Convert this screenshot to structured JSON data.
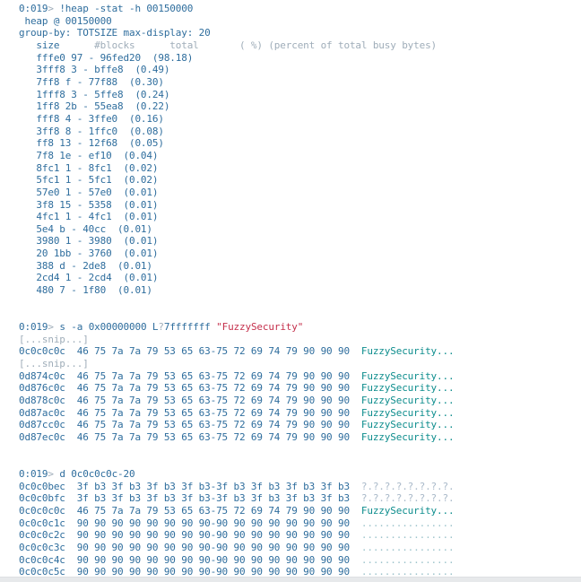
{
  "colors": {
    "bg": "#ffffff",
    "cmd": "#2e6d9d",
    "dim": "#9fadb9",
    "str": "#c5304c",
    "ascii": "#0d8d8d",
    "q": "#a9b9c9",
    "dots": "#9cc3cb",
    "bottom_bar": "#e7e9eb",
    "bottom_bar_edge": "#dde0e3"
  },
  "console": {
    "prompt": "0:019>",
    "sections": [
      {
        "name": "heap-stat-output",
        "command": "!heap -stat -h 00150000",
        "lines": [
          [
            [
              "cmd",
              "0:019"
            ],
            [
              "dim",
              ">"
            ],
            [
              "cmd",
              " !heap -stat -h 00150000"
            ]
          ],
          [
            [
              "cmd",
              " heap @ 00150000"
            ]
          ],
          [
            [
              "cmd",
              "group-by: TOTSIZE max-display: 20"
            ]
          ],
          [
            [
              "cmd",
              "   size"
            ],
            [
              "dim",
              "      #blocks      total       ( %) (percent of total busy bytes)"
            ]
          ],
          [
            [
              "cmd",
              "   fffe0 97 - 96fed20  (98.18)"
            ]
          ],
          [
            [
              "cmd",
              "   3fff8 3 - bffe8  (0.49)"
            ]
          ],
          [
            [
              "cmd",
              "   7ff8 f - 77f88  (0.30)"
            ]
          ],
          [
            [
              "cmd",
              "   1fff8 3 - 5ffe8  (0.24)"
            ]
          ],
          [
            [
              "cmd",
              "   1ff8 2b - 55ea8  (0.22)"
            ]
          ],
          [
            [
              "cmd",
              "   fff8 4 - 3ffe0  (0.16)"
            ]
          ],
          [
            [
              "cmd",
              "   3ff8 8 - 1ffc0  (0.08)"
            ]
          ],
          [
            [
              "cmd",
              "   ff8 13 - 12f68  (0.05)"
            ]
          ],
          [
            [
              "cmd",
              "   7f8 1e - ef10  (0.04)"
            ]
          ],
          [
            [
              "cmd",
              "   8fc1 1 - 8fc1  (0.02)"
            ]
          ],
          [
            [
              "cmd",
              "   5fc1 1 - 5fc1  (0.02)"
            ]
          ],
          [
            [
              "cmd",
              "   57e0 1 - 57e0  (0.01)"
            ]
          ],
          [
            [
              "cmd",
              "   3f8 15 - 5358  (0.01)"
            ]
          ],
          [
            [
              "cmd",
              "   4fc1 1 - 4fc1  (0.01)"
            ]
          ],
          [
            [
              "cmd",
              "   5e4 b - 40cc  (0.01)"
            ]
          ],
          [
            [
              "cmd",
              "   3980 1 - 3980  (0.01)"
            ]
          ],
          [
            [
              "cmd",
              "   20 1bb - 3760  (0.01)"
            ]
          ],
          [
            [
              "cmd",
              "   388 d - 2de8  (0.01)"
            ]
          ],
          [
            [
              "cmd",
              "   2cd4 1 - 2cd4  (0.01)"
            ]
          ],
          [
            [
              "cmd",
              "   480 7 - 1f80  (0.01)"
            ]
          ],
          [],
          []
        ]
      },
      {
        "name": "search-output",
        "command": "s -a 0x00000000 L?7fffffff \"FuzzySecurity\"",
        "lines": [
          [
            [
              "cmd",
              "0:019"
            ],
            [
              "dim",
              ">"
            ],
            [
              "cmd",
              " s -a 0x00000000 L"
            ],
            [
              "dim",
              "?"
            ],
            [
              "cmd",
              "7fffffff "
            ],
            [
              "str",
              "\"FuzzySecurity\""
            ]
          ],
          [
            [
              "dim",
              "[...snip...]"
            ]
          ],
          [
            [
              "cmd",
              "0c0c0c0c  46 75 7a 7a 79 53 65 63-75 72 69 74 79 90 90 90"
            ],
            [
              "ascii",
              "  FuzzySecurity..."
            ]
          ],
          [
            [
              "dim",
              "[...snip...]"
            ]
          ],
          [
            [
              "cmd",
              "0d874c0c  46 75 7a 7a 79 53 65 63-75 72 69 74 79 90 90 90"
            ],
            [
              "ascii",
              "  FuzzySecurity..."
            ]
          ],
          [
            [
              "cmd",
              "0d876c0c  46 75 7a 7a 79 53 65 63-75 72 69 74 79 90 90 90"
            ],
            [
              "ascii",
              "  FuzzySecurity..."
            ]
          ],
          [
            [
              "cmd",
              "0d878c0c  46 75 7a 7a 79 53 65 63-75 72 69 74 79 90 90 90"
            ],
            [
              "ascii",
              "  FuzzySecurity..."
            ]
          ],
          [
            [
              "cmd",
              "0d87ac0c  46 75 7a 7a 79 53 65 63-75 72 69 74 79 90 90 90"
            ],
            [
              "ascii",
              "  FuzzySecurity..."
            ]
          ],
          [
            [
              "cmd",
              "0d87cc0c  46 75 7a 7a 79 53 65 63-75 72 69 74 79 90 90 90"
            ],
            [
              "ascii",
              "  FuzzySecurity..."
            ]
          ],
          [
            [
              "cmd",
              "0d87ec0c  46 75 7a 7a 79 53 65 63-75 72 69 74 79 90 90 90"
            ],
            [
              "ascii",
              "  FuzzySecurity..."
            ]
          ],
          [],
          []
        ]
      },
      {
        "name": "memory-dump-output",
        "command": "d 0c0c0c0c-20",
        "lines": [
          [
            [
              "cmd",
              "0:019"
            ],
            [
              "dim",
              ">"
            ],
            [
              "cmd",
              " d 0c0c0c0c-20"
            ]
          ],
          [
            [
              "cmd",
              "0c0c0bec  3f b3 3f b3 3f b3 3f b3-3f b3 3f b3 3f b3 3f b3"
            ],
            [
              "q",
              "  ?.?.?.?.?.?.?.?."
            ]
          ],
          [
            [
              "cmd",
              "0c0c0bfc  3f b3 3f b3 3f b3 3f b3-3f b3 3f b3 3f b3 3f b3"
            ],
            [
              "q",
              "  ?.?.?.?.?.?.?.?."
            ]
          ],
          [
            [
              "cmd",
              "0c0c0c0c  46 75 7a 7a 79 53 65 63-75 72 69 74 79 90 90 90"
            ],
            [
              "ascii",
              "  FuzzySecurity..."
            ]
          ],
          [
            [
              "cmd",
              "0c0c0c1c  90 90 90 90 90 90 90 90-90 90 90 90 90 90 90 90"
            ],
            [
              "dots",
              "  ................"
            ]
          ],
          [
            [
              "cmd",
              "0c0c0c2c  90 90 90 90 90 90 90 90-90 90 90 90 90 90 90 90"
            ],
            [
              "dots",
              "  ................"
            ]
          ],
          [
            [
              "cmd",
              "0c0c0c3c  90 90 90 90 90 90 90 90-90 90 90 90 90 90 90 90"
            ],
            [
              "dots",
              "  ................"
            ]
          ],
          [
            [
              "cmd",
              "0c0c0c4c  90 90 90 90 90 90 90 90-90 90 90 90 90 90 90 90"
            ],
            [
              "dots",
              "  ................"
            ]
          ],
          [
            [
              "cmd",
              "0c0c0c5c  90 90 90 90 90 90 90 90-90 90 90 90 90 90 90 90"
            ],
            [
              "dots",
              "  ................"
            ]
          ]
        ]
      }
    ]
  }
}
